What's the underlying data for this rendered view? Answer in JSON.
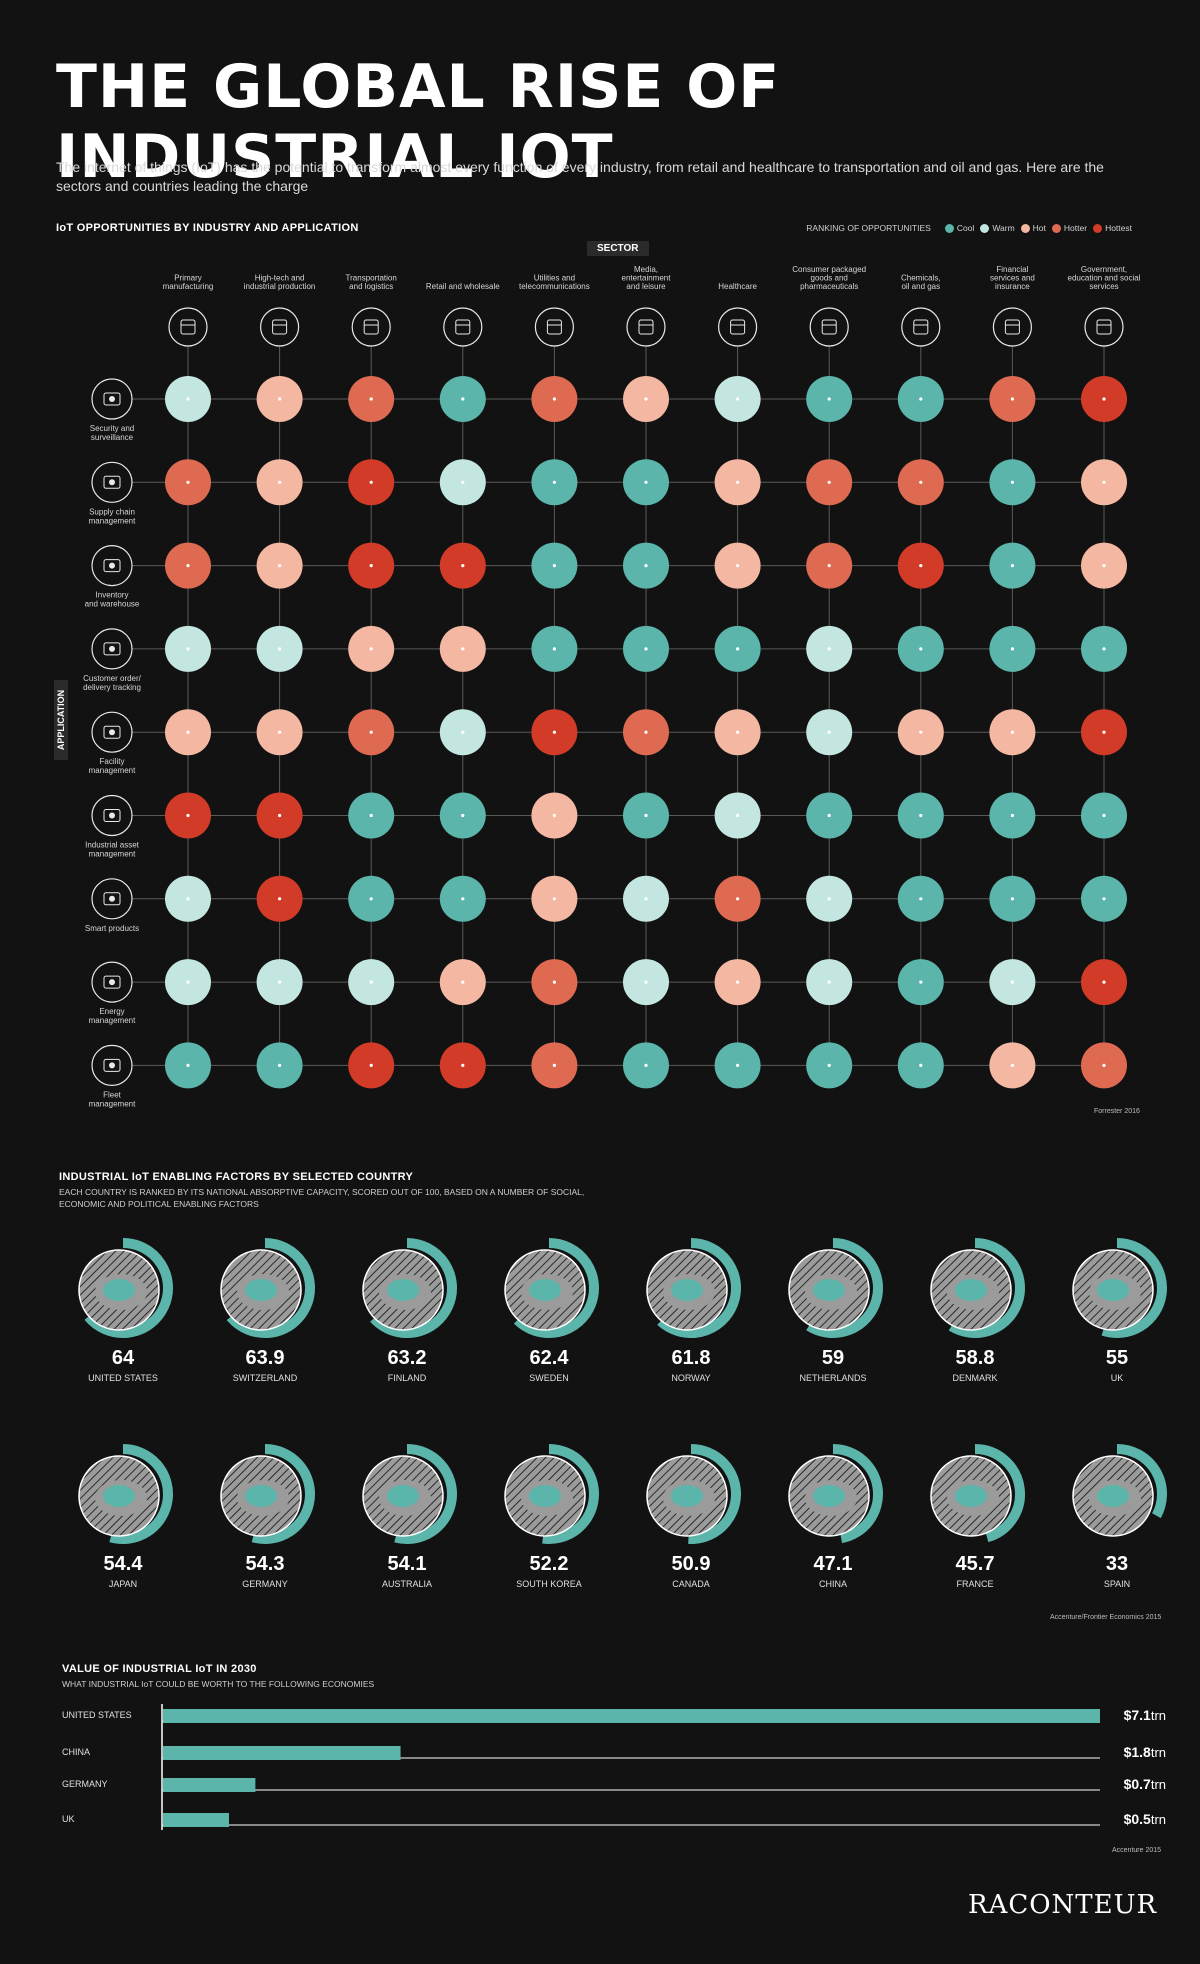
{
  "header": {
    "title": "THE GLOBAL RISE OF INDUSTRIAL IOT",
    "intro": "The internet of things (IoT) has the potential to transform almost every function of every industry, from retail and healthcare to transportation and oil and gas. Here are the sectors and countries leading the charge"
  },
  "colors": {
    "background": "#121212",
    "cool": "#5bb5aa",
    "warm": "#c4e6e0",
    "hot": "#f3b7a2",
    "hotter": "#df6a52",
    "hottest": "#d23b28"
  },
  "matrix": {
    "title": "IoT OPPORTUNITIES BY INDUSTRY AND APPLICATION",
    "legend_title": "RANKING OF OPPORTUNITIES",
    "legend": [
      "Cool",
      "Warm",
      "Hot",
      "Hotter",
      "Hottest"
    ],
    "sector_axis": "SECTOR",
    "application_axis": "APPLICATION",
    "source": "Forrester 2016",
    "chart_data": {
      "type": "heatmap",
      "x_label": "SECTOR",
      "y_label": "APPLICATION",
      "scale": [
        "Cool",
        "Warm",
        "Hot",
        "Hotter",
        "Hottest"
      ],
      "sectors": [
        {
          "label": "Primary\nmanufacturing",
          "icon": "tools-icon"
        },
        {
          "label": "High-tech and\nindustrial production",
          "icon": "robot-arm-icon"
        },
        {
          "label": "Transportation\nand logistics",
          "icon": "truck-icon"
        },
        {
          "label": "Retail and wholesale",
          "icon": "shopping-bag-icon"
        },
        {
          "label": "Utilities and\ntelecommunications",
          "icon": "telephone-icon"
        },
        {
          "label": "Media,\nentertainment\nand leisure",
          "icon": "vr-headset-icon"
        },
        {
          "label": "Healthcare",
          "icon": "heart-icon"
        },
        {
          "label": "Consumer packaged\ngoods and\npharmaceuticals",
          "icon": "box-icon"
        },
        {
          "label": "Chemicals,\noil and gas",
          "icon": "oil-rig-icon"
        },
        {
          "label": "Financial\nservices and\ninsurance",
          "icon": "money-bag-icon"
        },
        {
          "label": "Government,\neducation and social\nservices",
          "icon": "government-building-icon"
        }
      ],
      "applications": [
        {
          "label": "Security and\nsurveillance",
          "icon": "cctv-camera-icon",
          "levels": [
            1,
            2,
            3,
            0,
            3,
            2,
            1,
            0,
            0,
            3,
            4
          ]
        },
        {
          "label": "Supply chain\nmanagement",
          "icon": "globe-icon",
          "levels": [
            3,
            2,
            4,
            1,
            0,
            0,
            2,
            3,
            3,
            0,
            2
          ]
        },
        {
          "label": "Inventory\nand warehouse",
          "icon": "warehouse-chart-icon",
          "levels": [
            3,
            2,
            4,
            4,
            0,
            0,
            2,
            3,
            4,
            0,
            2
          ]
        },
        {
          "label": "Customer order/\ndelivery tracking",
          "icon": "order-tracking-icon",
          "levels": [
            1,
            1,
            2,
            2,
            0,
            0,
            0,
            1,
            0,
            0,
            0
          ]
        },
        {
          "label": "Facility\nmanagement",
          "icon": "facility-monitor-icon",
          "levels": [
            2,
            2,
            3,
            1,
            4,
            3,
            2,
            1,
            2,
            2,
            4
          ]
        },
        {
          "label": "Industrial asset\nmanagement",
          "icon": "factory-icon",
          "levels": [
            4,
            4,
            0,
            0,
            2,
            0,
            1,
            0,
            0,
            0,
            0
          ]
        },
        {
          "label": "Smart products",
          "icon": "smart-cloud-icon",
          "levels": [
            1,
            4,
            0,
            0,
            2,
            1,
            3,
            1,
            0,
            0,
            0
          ]
        },
        {
          "label": "Energy\nmanagement",
          "icon": "plug-icon",
          "levels": [
            1,
            1,
            1,
            2,
            3,
            1,
            2,
            1,
            0,
            1,
            4
          ]
        },
        {
          "label": "Fleet\nmanagement",
          "icon": "location-pin-icon",
          "levels": [
            0,
            0,
            4,
            4,
            3,
            0,
            0,
            0,
            0,
            2,
            3
          ]
        }
      ]
    }
  },
  "countries": {
    "title": "INDUSTRIAL IoT ENABLING FACTORS BY SELECTED COUNTRY",
    "subtitle": "EACH COUNTRY IS RANKED BY ITS NATIONAL ABSORPTIVE CAPACITY, SCORED OUT OF 100, BASED ON A NUMBER OF SOCIAL, ECONOMIC AND POLITICAL ENABLING FACTORS",
    "source": "Accenture/Frontier Economics 2015",
    "chart_data": {
      "type": "radial-bar",
      "max": 100,
      "items": [
        {
          "name": "UNITED STATES",
          "score": 64
        },
        {
          "name": "SWITZERLAND",
          "score": 63.9
        },
        {
          "name": "FINLAND",
          "score": 63.2
        },
        {
          "name": "SWEDEN",
          "score": 62.4
        },
        {
          "name": "NORWAY",
          "score": 61.8
        },
        {
          "name": "NETHERLANDS",
          "score": 59
        },
        {
          "name": "DENMARK",
          "score": 58.8
        },
        {
          "name": "UK",
          "score": 55
        },
        {
          "name": "JAPAN",
          "score": 54.4
        },
        {
          "name": "GERMANY",
          "score": 54.3
        },
        {
          "name": "AUSTRALIA",
          "score": 54.1
        },
        {
          "name": "SOUTH KOREA",
          "score": 52.2
        },
        {
          "name": "CANADA",
          "score": 50.9
        },
        {
          "name": "CHINA",
          "score": 47.1
        },
        {
          "name": "FRANCE",
          "score": 45.7
        },
        {
          "name": "SPAIN",
          "score": 33
        }
      ]
    }
  },
  "value": {
    "title": "VALUE OF INDUSTRIAL IoT IN 2030",
    "subtitle": "WHAT INDUSTRIAL IoT COULD BE WORTH TO THE FOLLOWING ECONOMIES",
    "source": "Accenture 2015",
    "chart_data": {
      "type": "bar",
      "orientation": "horizontal",
      "categories": [
        "UNITED STATES",
        "CHINA",
        "GERMANY",
        "UK"
      ],
      "values": [
        7.1,
        1.8,
        0.7,
        0.5
      ],
      "unit": "trn",
      "labels": [
        {
          "amount": "$7.1",
          "unit": "trn"
        },
        {
          "amount": "$1.8",
          "unit": "trn"
        },
        {
          "amount": "$0.7",
          "unit": "trn"
        },
        {
          "amount": "$0.5",
          "unit": "trn"
        }
      ]
    }
  },
  "brand": {
    "logo": "RACONTEUR"
  }
}
